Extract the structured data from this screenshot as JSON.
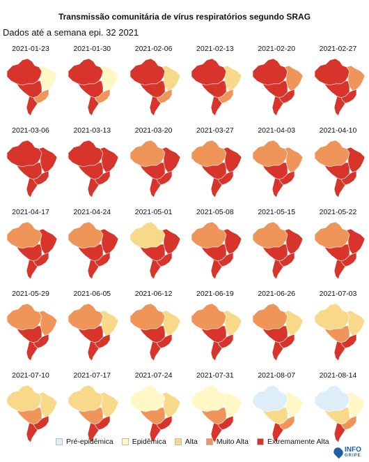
{
  "title": "Transmissão comunitária de vírus respiratórios segundo SRAG",
  "subtitle": "Dados até a semana epi. 32 2021",
  "colors": {
    "pre": "#ddeef8",
    "epi": "#fff7c6",
    "alta": "#f8d98a",
    "muito": "#f0955a",
    "extrema": "#d7352b"
  },
  "legend": [
    {
      "label": "Pré-epidêmica",
      "level": "pre"
    },
    {
      "label": "Epidêmica",
      "level": "epi"
    },
    {
      "label": "Alta",
      "level": "alta"
    },
    {
      "label": "Muito Alta",
      "level": "muito"
    },
    {
      "label": "Extremamente Alta",
      "level": "extrema"
    }
  ],
  "panels": [
    {
      "date": "2021-01-23",
      "north": "extrema",
      "northeast": "epi",
      "center": "extrema",
      "southeast": "muito",
      "south": "extrema"
    },
    {
      "date": "2021-01-30",
      "north": "extrema",
      "northeast": "epi",
      "center": "extrema",
      "southeast": "muito",
      "south": "extrema"
    },
    {
      "date": "2021-02-06",
      "north": "extrema",
      "northeast": "alta",
      "center": "extrema",
      "southeast": "muito",
      "south": "extrema"
    },
    {
      "date": "2021-02-13",
      "north": "extrema",
      "northeast": "alta",
      "center": "extrema",
      "southeast": "muito",
      "south": "extrema"
    },
    {
      "date": "2021-02-20",
      "north": "extrema",
      "northeast": "muito",
      "center": "extrema",
      "southeast": "extrema",
      "south": "extrema"
    },
    {
      "date": "2021-02-27",
      "north": "extrema",
      "northeast": "muito",
      "center": "extrema",
      "southeast": "extrema",
      "south": "extrema"
    },
    {
      "date": "2021-03-06",
      "north": "extrema",
      "northeast": "extrema",
      "center": "extrema",
      "southeast": "extrema",
      "south": "extrema"
    },
    {
      "date": "2021-03-13",
      "north": "extrema",
      "northeast": "extrema",
      "center": "extrema",
      "southeast": "extrema",
      "south": "extrema"
    },
    {
      "date": "2021-03-20",
      "north": "muito",
      "northeast": "extrema",
      "center": "extrema",
      "southeast": "extrema",
      "south": "extrema"
    },
    {
      "date": "2021-03-27",
      "north": "muito",
      "northeast": "extrema",
      "center": "extrema",
      "southeast": "extrema",
      "south": "extrema"
    },
    {
      "date": "2021-04-03",
      "north": "muito",
      "northeast": "muito",
      "center": "extrema",
      "southeast": "extrema",
      "south": "extrema"
    },
    {
      "date": "2021-04-10",
      "north": "muito",
      "northeast": "extrema",
      "center": "extrema",
      "southeast": "extrema",
      "south": "extrema"
    },
    {
      "date": "2021-04-17",
      "north": "muito",
      "northeast": "extrema",
      "center": "extrema",
      "southeast": "extrema",
      "south": "extrema"
    },
    {
      "date": "2021-04-24",
      "north": "muito",
      "northeast": "extrema",
      "center": "extrema",
      "southeast": "extrema",
      "south": "extrema"
    },
    {
      "date": "2021-05-01",
      "north": "alta",
      "northeast": "extrema",
      "center": "extrema",
      "southeast": "extrema",
      "south": "extrema"
    },
    {
      "date": "2021-05-08",
      "north": "muito",
      "northeast": "extrema",
      "center": "extrema",
      "southeast": "extrema",
      "south": "extrema"
    },
    {
      "date": "2021-05-15",
      "north": "muito",
      "northeast": "extrema",
      "center": "extrema",
      "southeast": "extrema",
      "south": "extrema"
    },
    {
      "date": "2021-05-22",
      "north": "muito",
      "northeast": "extrema",
      "center": "extrema",
      "southeast": "extrema",
      "south": "extrema"
    },
    {
      "date": "2021-05-29",
      "north": "muito",
      "northeast": "muito",
      "center": "extrema",
      "southeast": "extrema",
      "south": "extrema"
    },
    {
      "date": "2021-06-05",
      "north": "muito",
      "northeast": "alta",
      "center": "extrema",
      "southeast": "extrema",
      "south": "extrema"
    },
    {
      "date": "2021-06-12",
      "north": "muito",
      "northeast": "alta",
      "center": "extrema",
      "southeast": "extrema",
      "south": "extrema"
    },
    {
      "date": "2021-06-19",
      "north": "muito",
      "northeast": "alta",
      "center": "extrema",
      "southeast": "extrema",
      "south": "extrema"
    },
    {
      "date": "2021-06-26",
      "north": "muito",
      "northeast": "alta",
      "center": "extrema",
      "southeast": "extrema",
      "south": "extrema"
    },
    {
      "date": "2021-07-03",
      "north": "alta",
      "northeast": "alta",
      "center": "muito",
      "southeast": "extrema",
      "south": "extrema"
    },
    {
      "date": "2021-07-10",
      "north": "alta",
      "northeast": "alta",
      "center": "muito",
      "southeast": "extrema",
      "south": "extrema"
    },
    {
      "date": "2021-07-17",
      "north": "alta",
      "northeast": "alta",
      "center": "muito",
      "southeast": "extrema",
      "south": "extrema"
    },
    {
      "date": "2021-07-24",
      "north": "epi",
      "northeast": "alta",
      "center": "muito",
      "southeast": "extrema",
      "south": "extrema"
    },
    {
      "date": "2021-07-31",
      "north": "epi",
      "northeast": "epi",
      "center": "muito",
      "southeast": "extrema",
      "south": "extrema"
    },
    {
      "date": "2021-08-07",
      "north": "pre",
      "northeast": "epi",
      "center": "alta",
      "southeast": "muito",
      "south": "extrema"
    },
    {
      "date": "2021-08-14",
      "north": "pre",
      "northeast": "epi",
      "center": "alta",
      "southeast": "muito",
      "south": "extrema"
    }
  ],
  "logo": {
    "line1": "INFO",
    "line2": "GRIPE"
  }
}
